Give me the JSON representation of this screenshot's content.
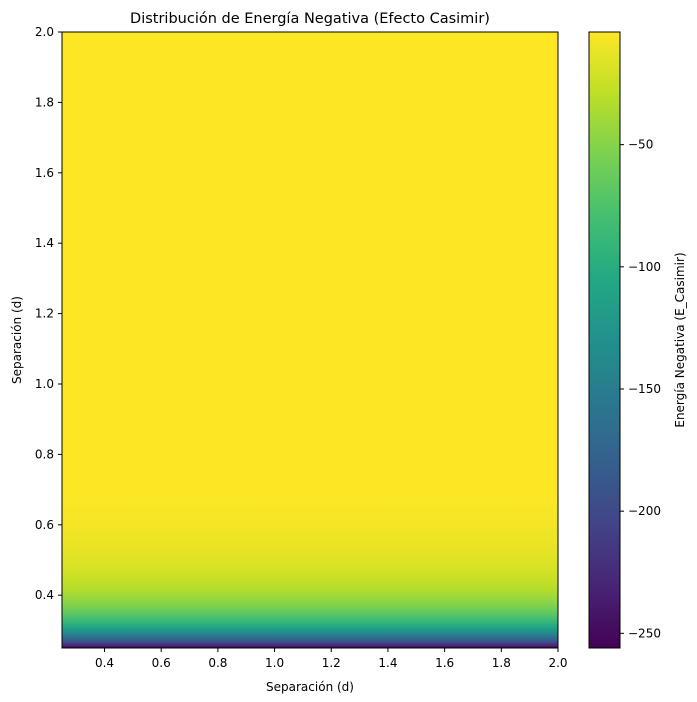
{
  "chart_data": {
    "type": "heatmap",
    "title": "Distribución de Energía Negativa (Efecto Casimir)",
    "xlabel": "Separación (d)",
    "ylabel": "Separación (d)",
    "xlim": [
      0.25,
      2.0
    ],
    "ylim": [
      0.25,
      2.0
    ],
    "x_ticks": [
      "0.4",
      "0.6",
      "0.8",
      "1.0",
      "1.2",
      "1.4",
      "1.6",
      "1.8",
      "2.0"
    ],
    "y_ticks": [
      "0.4",
      "0.6",
      "0.8",
      "1.0",
      "1.2",
      "1.4",
      "1.6",
      "1.8",
      "2.0"
    ],
    "x_tick_values": [
      0.4,
      0.6,
      0.8,
      1.0,
      1.2,
      1.4,
      1.6,
      1.8,
      2.0
    ],
    "y_tick_values": [
      0.4,
      0.6,
      0.8,
      1.0,
      1.2,
      1.4,
      1.6,
      1.8,
      2.0
    ],
    "formula": "E = -1/y^4",
    "colormap": "viridis",
    "colorbar": {
      "label": "Energía Negativa (E_Casimir)",
      "range": [
        -256,
        -3.9
      ],
      "ticks": [
        "−50",
        "−100",
        "−150",
        "−200",
        "−250"
      ],
      "tick_values": [
        -50,
        -100,
        -150,
        -200,
        -250
      ]
    },
    "grid": false
  }
}
